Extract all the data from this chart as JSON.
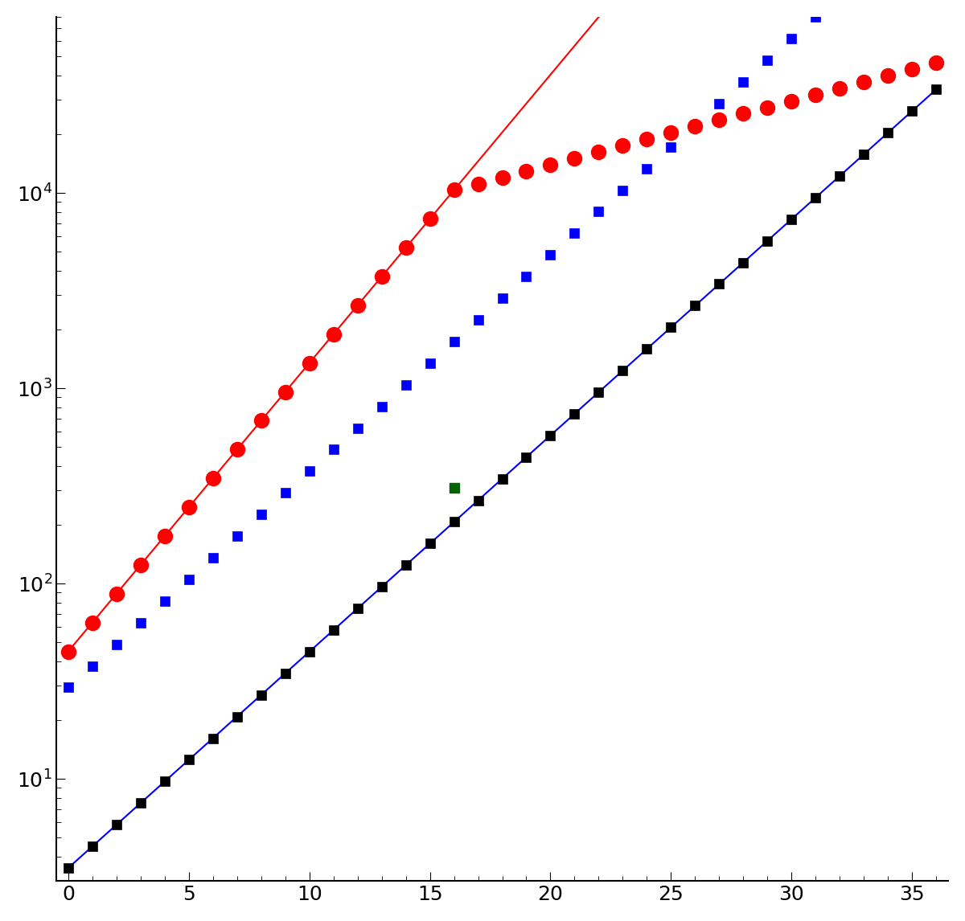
{
  "xlim": [
    -0.5,
    36.5
  ],
  "ylim": [
    3,
    80000
  ],
  "xticks": [
    0,
    5,
    10,
    15,
    20,
    25,
    30,
    35
  ],
  "yticks": [
    10,
    100,
    1000,
    10000
  ],
  "figsize": [
    12.0,
    11.46
  ],
  "dpi": 100,
  "bg_color": "#ffffff",
  "black_color": "#000000",
  "red_color": "#ff0000",
  "blue_color": "#0000ff",
  "green_color": "#006400",
  "black_multiplier": 8.4,
  "marker_size_black": 9,
  "marker_size_red": 13,
  "marker_size_blue": 9,
  "line_width": 1.5,
  "black_a": 3.5,
  "black_rate": 0.255,
  "red_a": 45.0,
  "red_rate": 0.34,
  "red_slow_pivot_x": 16,
  "red_slow_rate": 0.075,
  "blue_line_x_end": 36,
  "red_line_x_end": 22,
  "green_x": 16,
  "green_y": 310
}
